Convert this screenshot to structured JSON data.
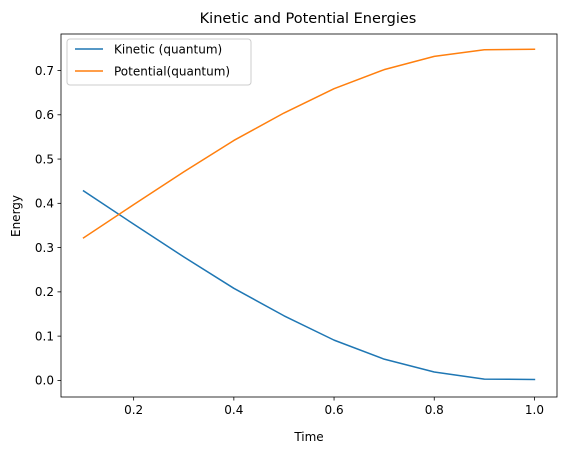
{
  "chart_data": {
    "type": "line",
    "title": "Kinetic and Potential Energies",
    "xlabel": "Time",
    "ylabel": "Energy",
    "xlim": [
      0.055,
      1.045
    ],
    "ylim": [
      -0.0375,
      0.7825
    ],
    "xticks": [
      0.2,
      0.4,
      0.6,
      0.8,
      1.0
    ],
    "xtick_labels": [
      "0.2",
      "0.4",
      "0.6",
      "0.8",
      "1.0"
    ],
    "yticks": [
      0.0,
      0.1,
      0.2,
      0.3,
      0.4,
      0.5,
      0.6,
      0.7
    ],
    "ytick_labels": [
      "0.0",
      "0.1",
      "0.2",
      "0.3",
      "0.4",
      "0.5",
      "0.6",
      "0.7"
    ],
    "grid": false,
    "legend_position": "top-left",
    "x": [
      0.1,
      0.2,
      0.3,
      0.4,
      0.5,
      0.6,
      0.7,
      0.8,
      0.9,
      1.0
    ],
    "series": [
      {
        "name": "Kinetic (quantum)",
        "color": "#1f77b4",
        "values": [
          0.428,
          0.353,
          0.279,
          0.208,
          0.146,
          0.091,
          0.048,
          0.019,
          0.003,
          0.002
        ]
      },
      {
        "name": "Potential(quantum)",
        "color": "#ff7f0e",
        "values": [
          0.322,
          0.397,
          0.471,
          0.542,
          0.604,
          0.659,
          0.702,
          0.732,
          0.747,
          0.748
        ]
      }
    ]
  }
}
